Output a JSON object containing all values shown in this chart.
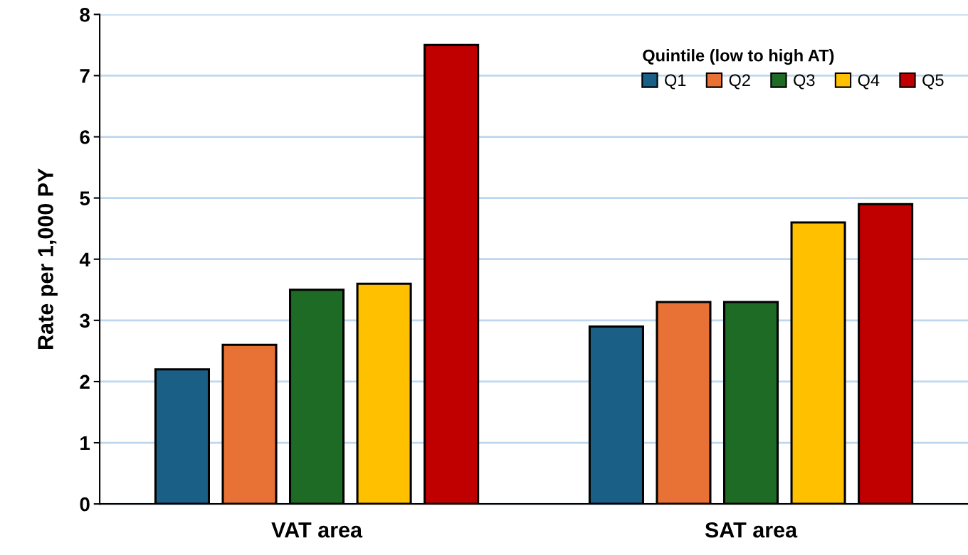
{
  "chart_data": {
    "type": "bar",
    "ylabel": "Rate per 1,000 PY",
    "legend_title": "Quintile (low to high AT)",
    "categories": [
      "VAT area",
      "SAT area"
    ],
    "series": [
      {
        "name": "Q1",
        "color": "#1a5f85",
        "values": [
          2.2,
          2.9
        ]
      },
      {
        "name": "Q2",
        "color": "#e87136",
        "values": [
          2.6,
          3.3
        ]
      },
      {
        "name": "Q3",
        "color": "#1e6b25",
        "values": [
          3.5,
          3.3
        ]
      },
      {
        "name": "Q4",
        "color": "#ffc000",
        "values": [
          3.6,
          4.6
        ]
      },
      {
        "name": "Q5",
        "color": "#c00000",
        "values": [
          7.5,
          4.9
        ]
      }
    ],
    "ylim": [
      0,
      8
    ],
    "yticks": [
      0,
      1,
      2,
      3,
      4,
      5,
      6,
      7,
      8
    ],
    "grid": "y",
    "legend": "top right"
  }
}
